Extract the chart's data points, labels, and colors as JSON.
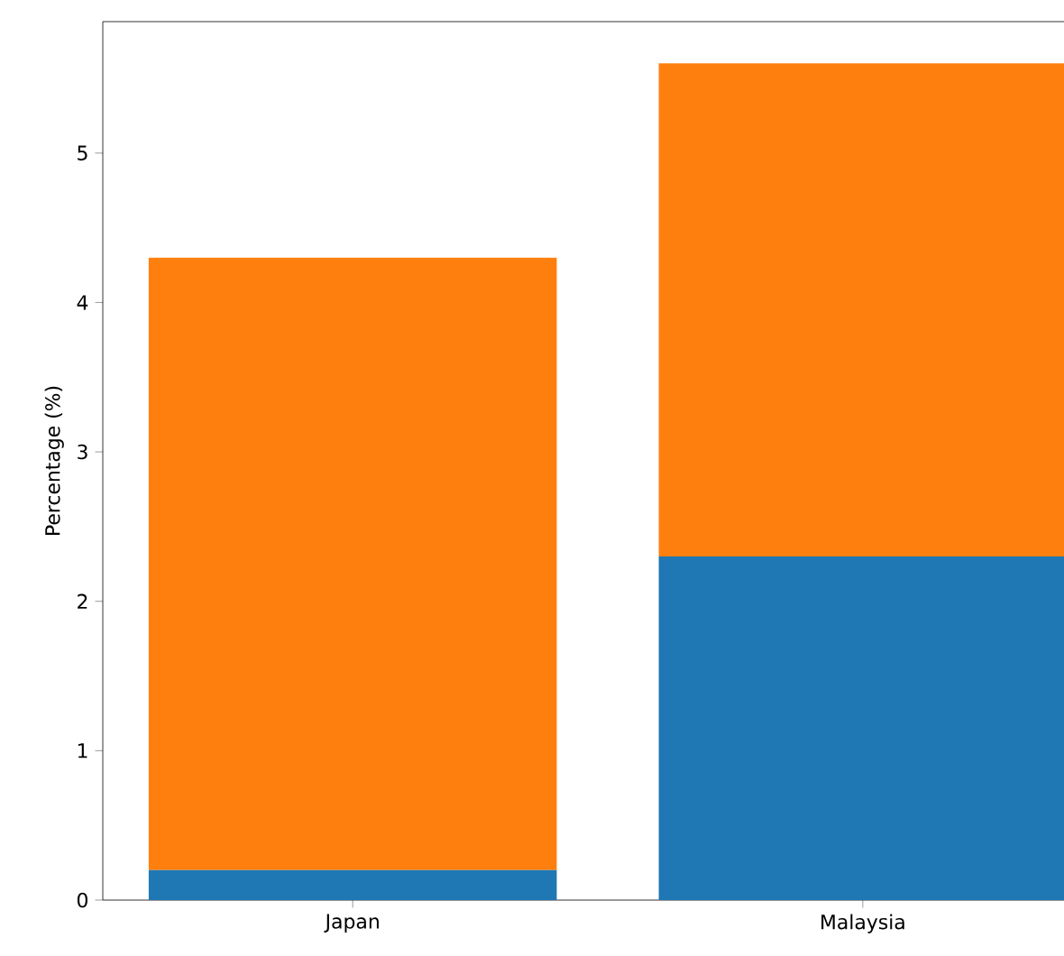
{
  "chart_data": {
    "type": "bar",
    "stacked": true,
    "ylabel": "Percentage (%)",
    "categories": [
      "Japan",
      "Malaysia"
    ],
    "series": [
      {
        "color": "#1f77b4",
        "values": [
          0.2,
          2.3
        ]
      },
      {
        "color": "#ff7f0e",
        "values": [
          4.1,
          3.3
        ]
      }
    ],
    "ylim": [
      0,
      5.88
    ],
    "yticks": [
      0,
      1,
      2,
      3,
      4,
      5
    ]
  }
}
